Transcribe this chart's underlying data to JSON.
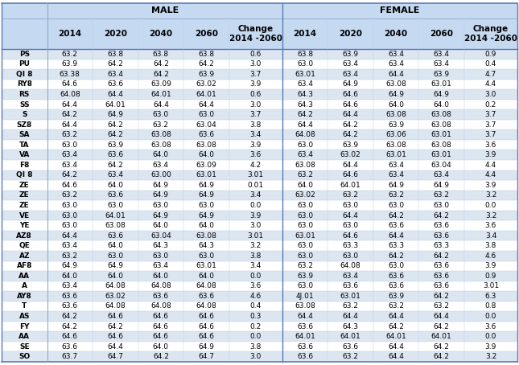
{
  "header_male": "MALE",
  "header_female": "FEMALE",
  "col_headers": [
    "2014",
    "2020",
    "2040",
    "2060",
    "Change\n2014 -2060"
  ],
  "rows": [
    [
      "PS",
      "63.2",
      "63.8",
      "63.8",
      "63.8",
      "0.6",
      "63.8",
      "63.9",
      "63.4",
      "63.4",
      "0.9"
    ],
    [
      "PU",
      "63.9",
      "64.2",
      "64.2",
      "64.2",
      "3.0",
      "63.0",
      "63.4",
      "63.4",
      "63.4",
      "0.4"
    ],
    [
      "QI 8",
      "63.38",
      "63.4",
      "64.2",
      "63.9",
      "3.7",
      "63.01",
      "63.4",
      "64.4",
      "63.9",
      "4.7"
    ],
    [
      "RY8",
      "64.6",
      "63.6",
      "63.09",
      "63.02",
      "3.9",
      "63.4",
      "64.9",
      "63.08",
      "63.01",
      "4.4"
    ],
    [
      "RS",
      "64.08",
      "64.4",
      "64.01",
      "64.01",
      "0.6",
      "64.3",
      "64.6",
      "64.9",
      "64.9",
      "3.0"
    ],
    [
      "SS",
      "64.4",
      "64.01",
      "64.4",
      "64.4",
      "3.0",
      "64.3",
      "64.6",
      "64.0",
      "64.0",
      "0.2"
    ],
    [
      "S",
      "64.2",
      "64.9",
      "63.0",
      "63.0",
      "3.7",
      "64.2",
      "64.4",
      "63.08",
      "63.08",
      "3.7"
    ],
    [
      "SZ8",
      "64.4",
      "64.2",
      "63.2",
      "63.04",
      "3.8",
      "64.4",
      "64.2",
      "63.9",
      "63.08",
      "3.7"
    ],
    [
      "SA",
      "63.2",
      "64.2",
      "63.08",
      "63.6",
      "3.4",
      "64.08",
      "64.2",
      "63.06",
      "63.01",
      "3.7"
    ],
    [
      "TA",
      "63.0",
      "63.9",
      "63.08",
      "63.08",
      "3.9",
      "63.0",
      "63.9",
      "63.08",
      "63.08",
      "3.6"
    ],
    [
      "VA",
      "63.4",
      "63.6",
      "64.0",
      "64.0",
      "3.6",
      "63.4",
      "63.02",
      "63.01",
      "63.01",
      "3.9"
    ],
    [
      "F8",
      "63.4",
      "64.2",
      "63.4",
      "63.09",
      "4.2",
      "63.08",
      "64.4",
      "63.4",
      "63.04",
      "4.4"
    ],
    [
      "QI 8",
      "64.2",
      "63.4",
      "63.00",
      "63.01",
      "3.01",
      "63.2",
      "64.6",
      "63.4",
      "63.4",
      "4.4"
    ],
    [
      "ZE",
      "64.6",
      "64.0",
      "64.9",
      "64.9",
      "0.01",
      "64.0",
      "64.01",
      "64.9",
      "64.9",
      "3.9"
    ],
    [
      "ZE",
      "63.2",
      "63.6",
      "64.9",
      "64.9",
      "3.4",
      "63.02",
      "63.2",
      "63.2",
      "63.2",
      "3.2"
    ],
    [
      "ZE",
      "63.0",
      "63.0",
      "63.0",
      "63.0",
      "0.0",
      "63.0",
      "63.0",
      "63.0",
      "63.0",
      "0.0"
    ],
    [
      "VE",
      "63.0",
      "64.01",
      "64.9",
      "64.9",
      "3.9",
      "63.0",
      "64.4",
      "64.2",
      "64.2",
      "3.2"
    ],
    [
      "YE",
      "63.0",
      "63.08",
      "64.0",
      "64.0",
      "3.0",
      "63.0",
      "63.0",
      "63.6",
      "63.6",
      "3.6"
    ],
    [
      "AZ8",
      "64.4",
      "63.6",
      "63.04",
      "63.08",
      "3.01",
      "63.01",
      "64.6",
      "64.4",
      "63.6",
      "3.4"
    ],
    [
      "QE",
      "63.4",
      "64.0",
      "64.3",
      "64.3",
      "3.2",
      "63.0",
      "63.3",
      "63.3",
      "63.3",
      "3.8"
    ],
    [
      "AZ",
      "63.2",
      "63.0",
      "63.0",
      "63.0",
      "3.8",
      "63.0",
      "63.0",
      "64.2",
      "64.2",
      "4.6"
    ],
    [
      "AF8",
      "64.9",
      "64.9",
      "63.4",
      "63.01",
      "3.4",
      "63.2",
      "64.08",
      "63.0",
      "63.6",
      "3.9"
    ],
    [
      "AA",
      "64.0",
      "64.0",
      "64.0",
      "64.0",
      "0.0",
      "63.9",
      "63.4",
      "63.6",
      "63.6",
      "0.9"
    ],
    [
      "A",
      "63.4",
      "64.08",
      "64.08",
      "64.08",
      "3.6",
      "63.0",
      "63.6",
      "63.6",
      "63.6",
      "3.01"
    ],
    [
      "AY8",
      "63.6",
      "63.02",
      "63.6",
      "63.6",
      "4.6",
      "4J.01",
      "63.01",
      "63.9",
      "64.2",
      "6.3"
    ],
    [
      "T",
      "63.6",
      "64.08",
      "64.08",
      "64.08",
      "0.4",
      "63.08",
      "63.2",
      "63.2",
      "63.2",
      "0.8"
    ],
    [
      "AS",
      "64.2",
      "64.6",
      "64.6",
      "64.6",
      "0.3",
      "64.4",
      "64.4",
      "64.4",
      "64.4",
      "0.0"
    ],
    [
      "FY",
      "64.2",
      "64.2",
      "64.6",
      "64.6",
      "0.2",
      "63.6",
      "64.3",
      "64.2",
      "64.2",
      "3.6"
    ],
    [
      "AA",
      "64.6",
      "64.6",
      "64.6",
      "64.6",
      "0.0",
      "64.01",
      "64.01",
      "64.01",
      "64.01",
      "0.0"
    ],
    [
      "SE",
      "63.6",
      "64.4",
      "64.0",
      "64.9",
      "3.8",
      "63.6",
      "63.6",
      "64.4",
      "64.2",
      "3.9"
    ],
    [
      "SO",
      "63.7",
      "64.7",
      "64.2",
      "64.7",
      "3.0",
      "63.6",
      "63.2",
      "64.4",
      "64.2",
      "3.2"
    ]
  ],
  "bg_color_even": "#dce6f1",
  "bg_color_odd": "#ffffff",
  "header_bg": "#c5d9f1",
  "line_color_strong": "#5a7ab5",
  "line_color_mid": "#8eaacc",
  "line_color_light": "#b8cce4",
  "font_size_data": 6.5,
  "font_size_header": 7.5,
  "font_size_section": 8.0
}
